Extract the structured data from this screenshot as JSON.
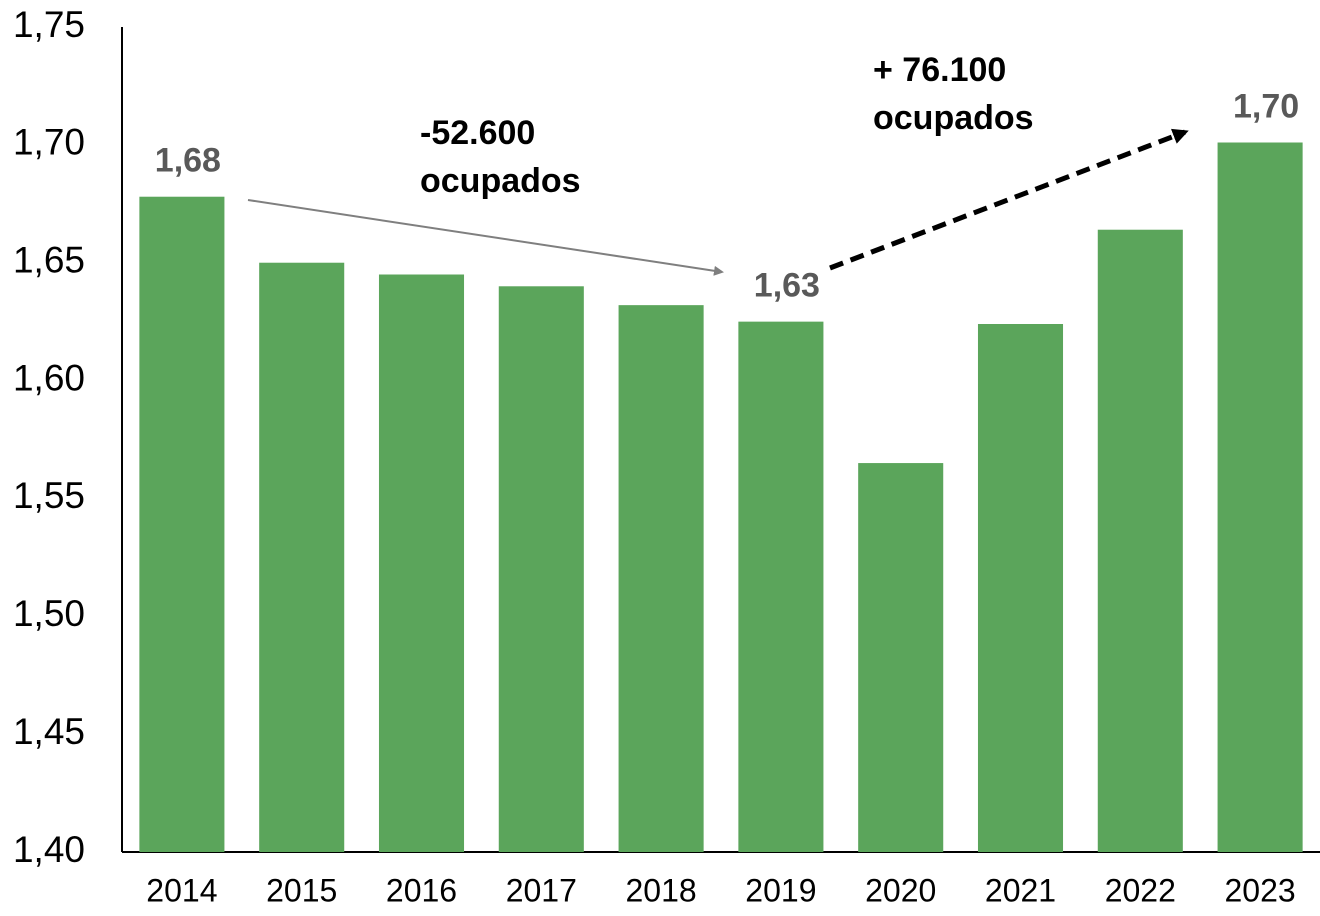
{
  "chart_data": {
    "type": "bar",
    "categories": [
      "2014",
      "2015",
      "2016",
      "2017",
      "2018",
      "2019",
      "2020",
      "2021",
      "2022",
      "2023"
    ],
    "values": [
      1.678,
      1.65,
      1.645,
      1.64,
      1.632,
      1.625,
      1.565,
      1.624,
      1.664,
      1.701
    ],
    "value_labels": [
      "1,68",
      null,
      null,
      null,
      null,
      "1,63",
      null,
      null,
      null,
      "1,70"
    ],
    "color": "#5ba55b",
    "ylim": [
      1.4,
      1.75
    ],
    "yticks": [
      {
        "value": 1.4,
        "label": "1,40"
      },
      {
        "value": 1.45,
        "label": "1,45"
      },
      {
        "value": 1.5,
        "label": "1,50"
      },
      {
        "value": 1.55,
        "label": "1,55"
      },
      {
        "value": 1.6,
        "label": "1,60"
      },
      {
        "value": 1.65,
        "label": "1,65"
      },
      {
        "value": 1.7,
        "label": "1,70"
      },
      {
        "value": 1.75,
        "label": "1,75"
      }
    ],
    "grid": false,
    "annotations": [
      {
        "lines": [
          "-52.600",
          "ocupados"
        ]
      },
      {
        "lines": [
          "+ 76.100",
          "ocupados"
        ]
      }
    ]
  }
}
